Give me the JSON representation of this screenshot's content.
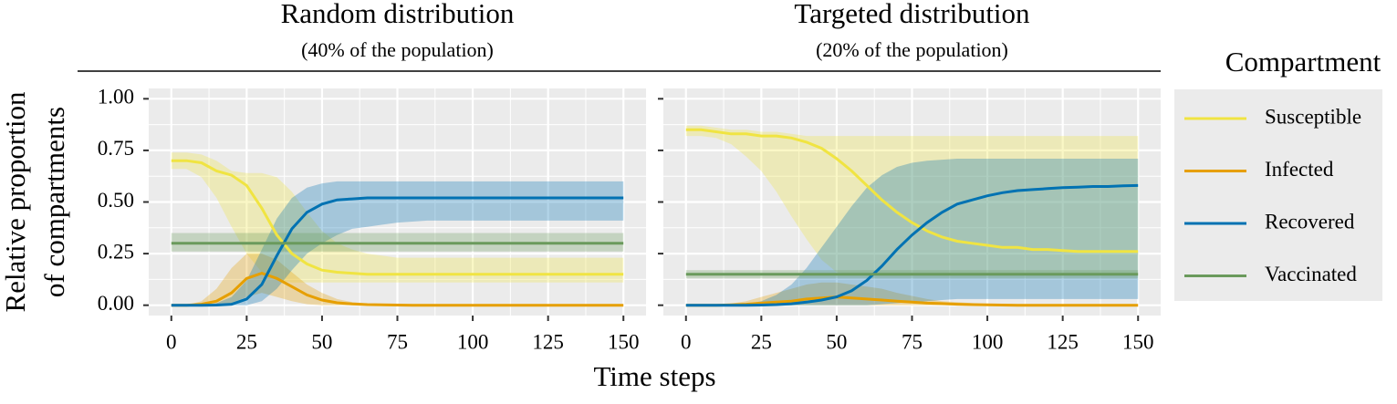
{
  "chart_data": [
    {
      "type": "line",
      "title": "Random distribution",
      "subtitle": "(40% of the population)",
      "xlabel": "Time steps",
      "ylabel": [
        "Relative proportion",
        "of compartments"
      ],
      "legend_title": "Compartment",
      "legend": "right",
      "grid": true,
      "xlim": [
        -7.5,
        157.5
      ],
      "ylim": [
        -0.05,
        1.05
      ],
      "xticks": [
        0,
        25,
        50,
        75,
        100,
        125,
        150
      ],
      "yticks": [
        {
          "value": 0,
          "label": "0.00"
        },
        {
          "value": 0.25,
          "label": "0.25"
        },
        {
          "value": 0.5,
          "label": "0.50"
        },
        {
          "value": 0.75,
          "label": "0.75"
        },
        {
          "value": 1,
          "label": "1.00"
        }
      ],
      "x": [
        0,
        5,
        10,
        15,
        20,
        25,
        30,
        35,
        40,
        45,
        50,
        55,
        60,
        65,
        70,
        75,
        80,
        85,
        90,
        95,
        100,
        105,
        110,
        115,
        120,
        125,
        130,
        135,
        140,
        145,
        150
      ],
      "series": [
        {
          "name": "Susceptible",
          "color": "#f0e442",
          "values": [
            0.7,
            0.7,
            0.69,
            0.65,
            0.63,
            0.58,
            0.47,
            0.34,
            0.25,
            0.2,
            0.17,
            0.16,
            0.155,
            0.15,
            0.15,
            0.15,
            0.15,
            0.15,
            0.15,
            0.15,
            0.15,
            0.15,
            0.15,
            0.15,
            0.15,
            0.15,
            0.15,
            0.15,
            0.15,
            0.15,
            0.15
          ],
          "lower": [
            0.66,
            0.66,
            0.62,
            0.52,
            0.38,
            0.25,
            0.16,
            0.12,
            0.11,
            0.11,
            0.11,
            0.11,
            0.11,
            0.11,
            0.11,
            0.11,
            0.11,
            0.11,
            0.11,
            0.11,
            0.11,
            0.11,
            0.11,
            0.11,
            0.11,
            0.11,
            0.11,
            0.11,
            0.11,
            0.11,
            0.11
          ],
          "upper": [
            0.74,
            0.74,
            0.73,
            0.7,
            0.65,
            0.64,
            0.64,
            0.62,
            0.55,
            0.45,
            0.36,
            0.3,
            0.27,
            0.25,
            0.24,
            0.23,
            0.23,
            0.23,
            0.23,
            0.23,
            0.23,
            0.23,
            0.23,
            0.23,
            0.23,
            0.23,
            0.23,
            0.23,
            0.23,
            0.23,
            0.23
          ]
        },
        {
          "name": "Infected",
          "color": "#e69f00",
          "values": [
            0,
            0,
            0.005,
            0.02,
            0.06,
            0.13,
            0.155,
            0.13,
            0.09,
            0.05,
            0.025,
            0.012,
            0.006,
            0.003,
            0.002,
            0.001,
            0,
            0,
            0,
            0,
            0,
            0,
            0,
            0,
            0,
            0,
            0,
            0,
            0,
            0,
            0
          ],
          "lower": [
            0,
            0,
            0,
            0,
            0.01,
            0.04,
            0.06,
            0.04,
            0.02,
            0.005,
            0,
            0,
            0,
            0,
            0,
            0,
            0,
            0,
            0,
            0,
            0,
            0,
            0,
            0,
            0,
            0,
            0,
            0,
            0,
            0,
            0
          ],
          "upper": [
            0,
            0,
            0.02,
            0.08,
            0.18,
            0.25,
            0.25,
            0.22,
            0.16,
            0.1,
            0.06,
            0.03,
            0.015,
            0.008,
            0.004,
            0.002,
            0,
            0,
            0,
            0,
            0,
            0,
            0,
            0,
            0,
            0,
            0,
            0,
            0,
            0,
            0
          ]
        },
        {
          "name": "Recovered",
          "color": "#0072b2",
          "values": [
            0,
            0,
            0,
            0.001,
            0.005,
            0.03,
            0.1,
            0.24,
            0.37,
            0.45,
            0.49,
            0.51,
            0.515,
            0.52,
            0.52,
            0.52,
            0.52,
            0.52,
            0.52,
            0.52,
            0.52,
            0.52,
            0.52,
            0.52,
            0.52,
            0.52,
            0.52,
            0.52,
            0.52,
            0.52,
            0.52
          ],
          "lower": [
            0,
            0,
            0,
            0,
            0,
            0,
            0.02,
            0.08,
            0.17,
            0.25,
            0.3,
            0.34,
            0.37,
            0.38,
            0.39,
            0.4,
            0.405,
            0.41,
            0.41,
            0.41,
            0.41,
            0.41,
            0.41,
            0.41,
            0.41,
            0.41,
            0.41,
            0.41,
            0.41,
            0.41,
            0.41
          ],
          "upper": [
            0,
            0,
            0,
            0.01,
            0.04,
            0.12,
            0.27,
            0.42,
            0.52,
            0.57,
            0.59,
            0.6,
            0.6,
            0.6,
            0.6,
            0.6,
            0.6,
            0.6,
            0.6,
            0.6,
            0.6,
            0.6,
            0.6,
            0.6,
            0.6,
            0.6,
            0.6,
            0.6,
            0.6,
            0.6,
            0.6
          ]
        },
        {
          "name": "Vaccinated",
          "color": "#6a9a5c",
          "values": [
            0.3,
            0.3,
            0.3,
            0.3,
            0.3,
            0.3,
            0.3,
            0.3,
            0.3,
            0.3,
            0.3,
            0.3,
            0.3,
            0.3,
            0.3,
            0.3,
            0.3,
            0.3,
            0.3,
            0.3,
            0.3,
            0.3,
            0.3,
            0.3,
            0.3,
            0.3,
            0.3,
            0.3,
            0.3,
            0.3,
            0.3
          ],
          "lower": [
            0.26,
            0.26,
            0.26,
            0.26,
            0.26,
            0.26,
            0.26,
            0.26,
            0.26,
            0.26,
            0.26,
            0.26,
            0.26,
            0.26,
            0.26,
            0.26,
            0.26,
            0.26,
            0.26,
            0.26,
            0.26,
            0.26,
            0.26,
            0.26,
            0.26,
            0.26,
            0.26,
            0.26,
            0.26,
            0.26,
            0.26
          ],
          "upper": [
            0.35,
            0.35,
            0.35,
            0.35,
            0.35,
            0.35,
            0.35,
            0.35,
            0.35,
            0.35,
            0.35,
            0.35,
            0.35,
            0.35,
            0.35,
            0.35,
            0.35,
            0.35,
            0.35,
            0.35,
            0.35,
            0.35,
            0.35,
            0.35,
            0.35,
            0.35,
            0.35,
            0.35,
            0.35,
            0.35,
            0.35
          ]
        }
      ]
    },
    {
      "type": "line",
      "title": "Targeted distribution",
      "subtitle": "(20% of the population)",
      "grid": true,
      "xlim": [
        -7.5,
        157.5
      ],
      "ylim": [
        -0.05,
        1.05
      ],
      "xticks": [
        0,
        25,
        50,
        75,
        100,
        125,
        150
      ],
      "x": [
        0,
        5,
        10,
        15,
        20,
        25,
        30,
        35,
        40,
        45,
        50,
        55,
        60,
        65,
        70,
        75,
        80,
        85,
        90,
        95,
        100,
        105,
        110,
        115,
        120,
        125,
        130,
        135,
        140,
        145,
        150
      ],
      "series": [
        {
          "name": "Susceptible",
          "color": "#f0e442",
          "values": [
            0.85,
            0.85,
            0.84,
            0.83,
            0.83,
            0.82,
            0.82,
            0.81,
            0.79,
            0.76,
            0.71,
            0.65,
            0.58,
            0.51,
            0.45,
            0.4,
            0.36,
            0.33,
            0.31,
            0.3,
            0.29,
            0.28,
            0.28,
            0.27,
            0.27,
            0.265,
            0.26,
            0.26,
            0.26,
            0.26,
            0.26
          ],
          "lower": [
            0.82,
            0.82,
            0.81,
            0.78,
            0.72,
            0.65,
            0.55,
            0.43,
            0.32,
            0.22,
            0.16,
            0.15,
            0.15,
            0.15,
            0.15,
            0.15,
            0.15,
            0.15,
            0.15,
            0.15,
            0.15,
            0.15,
            0.15,
            0.15,
            0.15,
            0.15,
            0.15,
            0.15,
            0.15,
            0.15,
            0.15
          ],
          "upper": [
            0.87,
            0.87,
            0.86,
            0.85,
            0.85,
            0.84,
            0.84,
            0.83,
            0.82,
            0.82,
            0.82,
            0.82,
            0.82,
            0.82,
            0.82,
            0.82,
            0.82,
            0.82,
            0.82,
            0.82,
            0.82,
            0.82,
            0.82,
            0.82,
            0.82,
            0.82,
            0.82,
            0.82,
            0.82,
            0.82,
            0.82
          ]
        },
        {
          "name": "Infected",
          "color": "#e69f00",
          "values": [
            0,
            0,
            0,
            0.002,
            0.005,
            0.01,
            0.015,
            0.02,
            0.03,
            0.035,
            0.04,
            0.035,
            0.03,
            0.025,
            0.02,
            0.015,
            0.01,
            0.008,
            0.005,
            0.003,
            0.002,
            0.001,
            0,
            0,
            0,
            0,
            0,
            0,
            0,
            0,
            0
          ],
          "lower": [
            0,
            0,
            0,
            0,
            0,
            0,
            0,
            0,
            0,
            0,
            0,
            0,
            0,
            0,
            0,
            0,
            0,
            0,
            0,
            0,
            0,
            0,
            0,
            0,
            0,
            0,
            0,
            0,
            0,
            0,
            0
          ],
          "upper": [
            0,
            0,
            0.002,
            0.008,
            0.02,
            0.04,
            0.06,
            0.08,
            0.1,
            0.11,
            0.11,
            0.1,
            0.09,
            0.08,
            0.06,
            0.045,
            0.03,
            0.02,
            0.015,
            0.01,
            0.005,
            0.003,
            0.001,
            0,
            0,
            0,
            0,
            0,
            0,
            0,
            0
          ]
        },
        {
          "name": "Recovered",
          "color": "#0072b2",
          "values": [
            0,
            0,
            0,
            0,
            0,
            0.001,
            0.003,
            0.007,
            0.015,
            0.025,
            0.04,
            0.07,
            0.12,
            0.19,
            0.27,
            0.34,
            0.4,
            0.45,
            0.49,
            0.51,
            0.53,
            0.545,
            0.555,
            0.56,
            0.565,
            0.57,
            0.572,
            0.575,
            0.575,
            0.578,
            0.58
          ],
          "lower": [
            0,
            0,
            0,
            0,
            0,
            0,
            0,
            0,
            0,
            0,
            0,
            0,
            0,
            0.005,
            0.01,
            0.015,
            0.02,
            0.025,
            0.03,
            0.03,
            0.03,
            0.03,
            0.03,
            0.03,
            0.03,
            0.03,
            0.03,
            0.03,
            0.03,
            0.03,
            0.03
          ],
          "upper": [
            0,
            0,
            0,
            0,
            0.005,
            0.02,
            0.05,
            0.1,
            0.18,
            0.28,
            0.38,
            0.48,
            0.57,
            0.63,
            0.67,
            0.69,
            0.7,
            0.705,
            0.71,
            0.71,
            0.71,
            0.71,
            0.71,
            0.71,
            0.71,
            0.71,
            0.71,
            0.71,
            0.71,
            0.71,
            0.71
          ]
        },
        {
          "name": "Vaccinated",
          "color": "#6a9a5c",
          "values": [
            0.15,
            0.15,
            0.15,
            0.15,
            0.15,
            0.15,
            0.15,
            0.15,
            0.15,
            0.15,
            0.15,
            0.15,
            0.15,
            0.15,
            0.15,
            0.15,
            0.15,
            0.15,
            0.15,
            0.15,
            0.15,
            0.15,
            0.15,
            0.15,
            0.15,
            0.15,
            0.15,
            0.15,
            0.15,
            0.15,
            0.15
          ],
          "lower": [
            0.13,
            0.13,
            0.13,
            0.13,
            0.13,
            0.13,
            0.13,
            0.13,
            0.13,
            0.13,
            0.13,
            0.13,
            0.13,
            0.13,
            0.13,
            0.13,
            0.13,
            0.13,
            0.13,
            0.13,
            0.13,
            0.13,
            0.13,
            0.13,
            0.13,
            0.13,
            0.13,
            0.13,
            0.13,
            0.13,
            0.13
          ],
          "upper": [
            0.17,
            0.17,
            0.17,
            0.17,
            0.17,
            0.17,
            0.17,
            0.17,
            0.17,
            0.17,
            0.17,
            0.17,
            0.17,
            0.17,
            0.17,
            0.17,
            0.17,
            0.17,
            0.17,
            0.17,
            0.17,
            0.17,
            0.17,
            0.17,
            0.17,
            0.17,
            0.17,
            0.17,
            0.17,
            0.17,
            0.17
          ]
        }
      ]
    }
  ]
}
